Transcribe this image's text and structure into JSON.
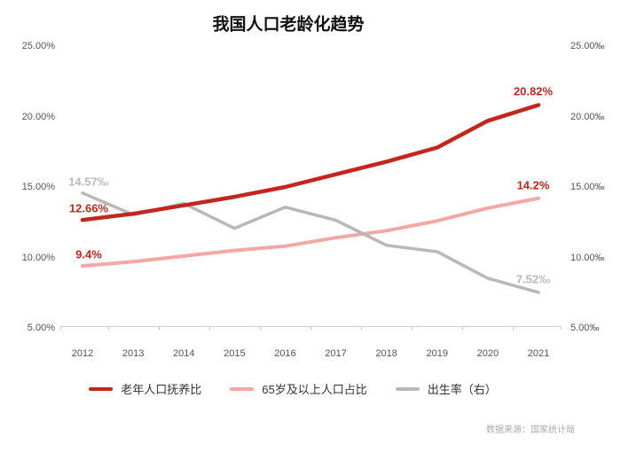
{
  "title": "我国人口老龄化趋势",
  "source_note": "数据来源：国家统计局",
  "colors": {
    "dependency_red": "#c4261d",
    "share_pink": "#f4a7a4",
    "birth_gray": "#b8b8b8",
    "red_label": "#c4261d",
    "gray_label": "#b9b9b9",
    "axis_text": "#555555",
    "legend_text": "#333333",
    "axis_line": "#cccccc",
    "source_text": "#aaaaaa"
  },
  "chart_data": {
    "type": "line",
    "title": "我国人口老龄化趋势",
    "categories": [
      "2012",
      "2013",
      "2014",
      "2015",
      "2016",
      "2017",
      "2018",
      "2019",
      "2020",
      "2021"
    ],
    "series": [
      {
        "name": "老年人口抚养比",
        "axis": "left",
        "color_key": "dependency_red",
        "values": [
          12.66,
          13.1,
          13.7,
          14.3,
          15.0,
          15.9,
          16.8,
          17.8,
          19.7,
          20.82
        ],
        "start_label": "12.66%",
        "end_label": "20.82%",
        "label_color_key": "red_label"
      },
      {
        "name": "65岁及以上人口占比",
        "axis": "left",
        "color_key": "share_pink",
        "values": [
          9.4,
          9.7,
          10.1,
          10.5,
          10.8,
          11.4,
          11.9,
          12.6,
          13.5,
          14.2
        ],
        "start_label": "9.4%",
        "end_label": "14.2%",
        "label_color_key": "red_label"
      },
      {
        "name": "出生率（右）",
        "axis": "right",
        "color_key": "birth_gray",
        "values": [
          14.57,
          13.03,
          13.83,
          12.07,
          13.57,
          12.64,
          10.86,
          10.41,
          8.52,
          7.52
        ],
        "start_label": "14.57‰",
        "end_label": "7.52‰",
        "label_color_key": "gray_label"
      }
    ],
    "y_axis_left": {
      "ticks": [
        "25.00%",
        "20.00%",
        "15.00%",
        "10.00%",
        "5.00%"
      ],
      "min": 5,
      "max": 25
    },
    "y_axis_right": {
      "ticks": [
        "25.00‰",
        "20.00‰",
        "15.00‰",
        "10.00‰",
        "5.00‰"
      ],
      "min": 5,
      "max": 25
    },
    "legend": [
      "老年人口抚养比",
      "65岁及以上人口占比",
      "出生率（右）"
    ],
    "legend_position": "bottom",
    "grid": false
  }
}
